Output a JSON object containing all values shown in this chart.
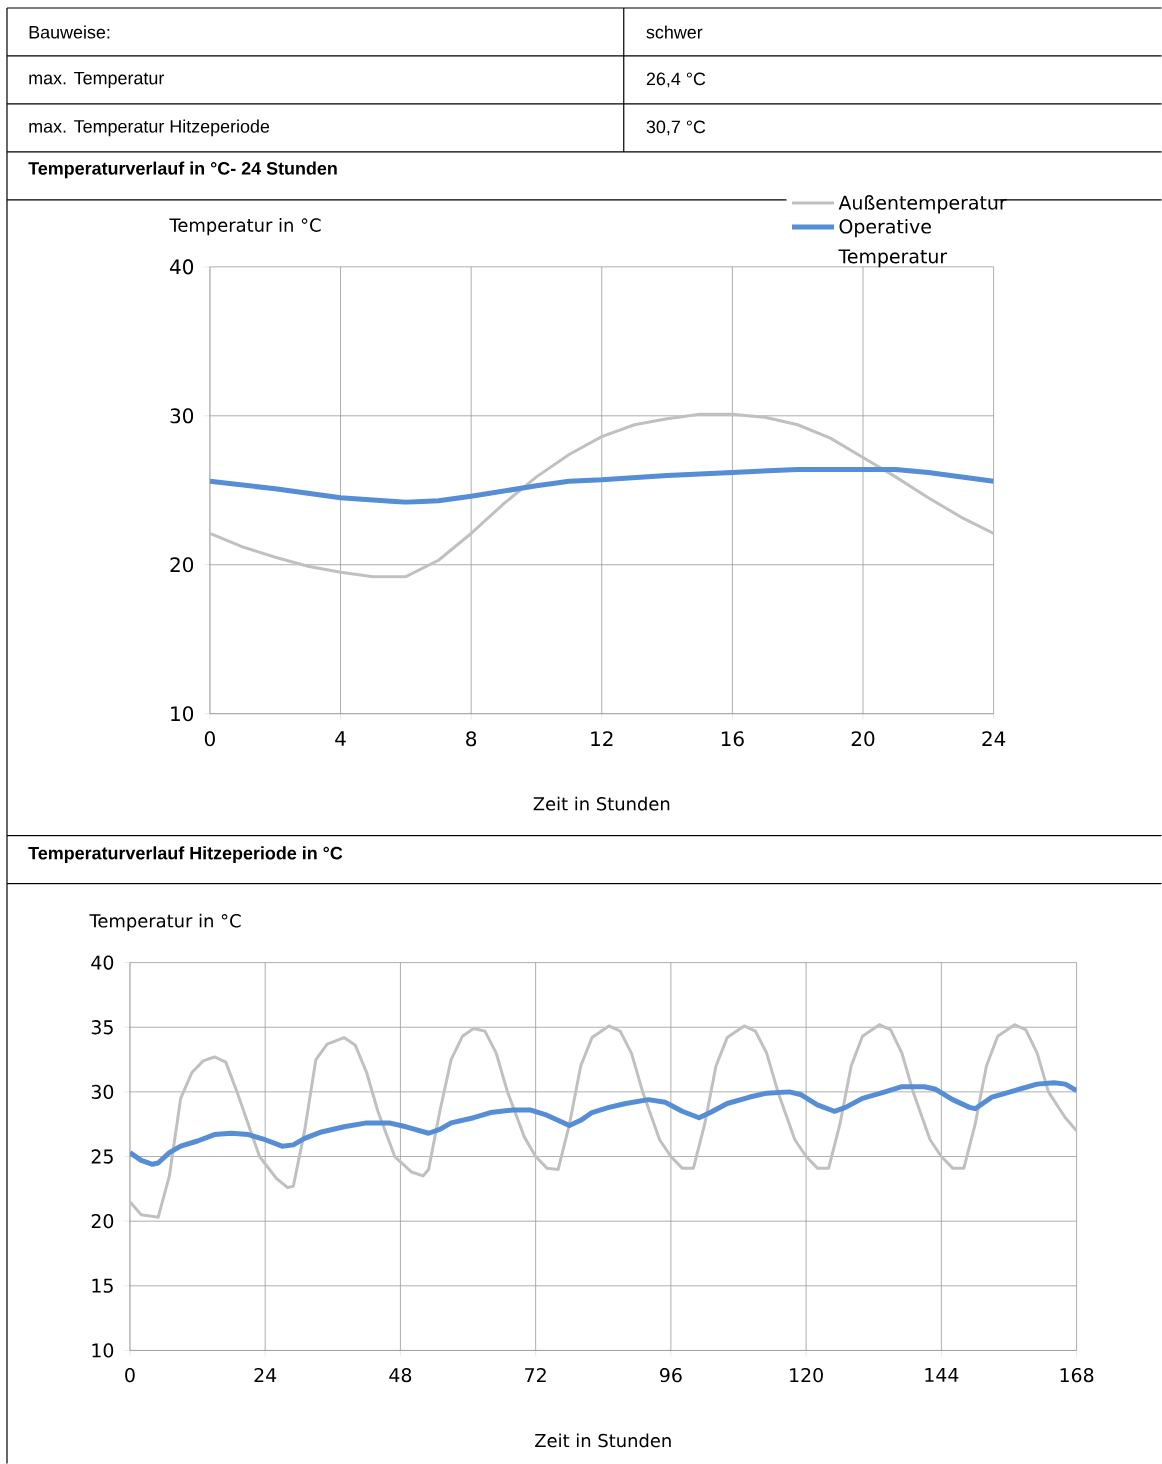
{
  "chart_data": [
    {
      "type": "other",
      "annotations": [
        "Bauweise:",
        "schwer",
        "max. Temperatur",
        "26,4 °C",
        "max. Temperatur Hitzeperiode",
        "30,7 °C"
      ]
    },
    {
      "type": "line",
      "title": "Temperaturverlauf in °C- 24 Stunden",
      "xlabel": "Zeit in Stunden",
      "ylabel": "Temperatur in °C",
      "xlim": [
        0,
        24
      ],
      "xticks": [
        0,
        4,
        8,
        12,
        16,
        20,
        24
      ],
      "ylim": [
        10,
        40
      ],
      "yticks": [
        10,
        20,
        30,
        40
      ],
      "grid": true,
      "legend": "top right",
      "series": [
        {
          "name": "Außentemperatur",
          "color": "#c0c0c0",
          "x": [
            0,
            1,
            2,
            3,
            4,
            5,
            6,
            7,
            8,
            9,
            10,
            11,
            12,
            13,
            14,
            15,
            16,
            17,
            18,
            19,
            20,
            21,
            22,
            23,
            24
          ],
          "values": [
            22.1,
            21.2,
            20.5,
            19.9,
            19.5,
            19.2,
            19.2,
            20.3,
            22.1,
            24.1,
            25.9,
            27.4,
            28.6,
            29.4,
            29.8,
            30.1,
            30.1,
            29.9,
            29.4,
            28.5,
            27.2,
            25.9,
            24.5,
            23.2,
            22.1
          ]
        },
        {
          "name": "Operative Temperatur",
          "color": "#558ed5",
          "x": [
            0,
            2,
            4,
            6,
            7,
            8,
            10,
            11,
            12,
            14,
            16,
            18,
            20,
            21,
            22,
            24
          ],
          "values": [
            25.6,
            25.1,
            24.5,
            24.2,
            24.3,
            24.6,
            25.3,
            25.6,
            25.7,
            26.0,
            26.2,
            26.4,
            26.4,
            26.4,
            26.2,
            25.6
          ]
        }
      ]
    },
    {
      "type": "line",
      "title": "Temperaturverlauf Hitzeperiode in °C",
      "xlabel": "Zeit in Stunden",
      "ylabel": "Temperatur in °C",
      "xlim": [
        0,
        168
      ],
      "xticks": [
        0,
        24,
        48,
        72,
        96,
        120,
        144,
        168
      ],
      "ylim": [
        10,
        40
      ],
      "yticks": [
        10,
        15,
        20,
        25,
        30,
        35,
        40
      ],
      "grid": true,
      "series": [
        {
          "color": "#c0c0c0",
          "x": [
            0,
            2,
            5,
            7,
            9,
            11,
            13,
            15,
            17,
            19,
            21,
            23,
            26,
            28,
            29,
            31,
            33,
            35,
            38,
            40,
            42,
            44,
            47,
            50,
            52,
            53,
            55,
            57,
            59,
            61,
            63,
            65,
            67,
            70,
            72,
            74,
            76,
            78,
            80,
            82,
            85,
            87,
            89,
            91,
            94,
            96,
            98,
            100,
            102,
            104,
            106,
            109,
            111,
            113,
            115,
            118,
            120,
            122,
            124,
            126,
            128,
            130,
            133,
            135,
            137,
            139,
            142,
            144,
            146,
            148,
            150,
            152,
            154,
            157,
            159,
            161,
            163,
            166,
            168
          ],
          "values": [
            21.5,
            20.5,
            20.3,
            23.5,
            29.5,
            31.5,
            32.4,
            32.7,
            32.3,
            30.0,
            27.5,
            25.0,
            23.3,
            22.6,
            22.7,
            27.0,
            32.5,
            33.7,
            34.2,
            33.6,
            31.5,
            28.5,
            25.0,
            23.8,
            23.5,
            24.0,
            28.5,
            32.5,
            34.3,
            34.9,
            34.7,
            33.0,
            30.0,
            26.5,
            25.0,
            24.1,
            24.0,
            27.5,
            32.0,
            34.2,
            35.1,
            34.7,
            33.0,
            30.0,
            26.3,
            25.0,
            24.1,
            24.1,
            27.5,
            32.0,
            34.2,
            35.1,
            34.7,
            33.0,
            30.0,
            26.3,
            25.0,
            24.1,
            24.1,
            27.5,
            32.0,
            34.3,
            35.2,
            34.8,
            33.0,
            30.0,
            26.3,
            25.0,
            24.1,
            24.1,
            27.5,
            32.0,
            34.3,
            35.2,
            34.8,
            33.0,
            30.0,
            28.0,
            27.0
          ]
        },
        {
          "color": "#558ed5",
          "x": [
            0,
            2,
            4,
            5,
            7,
            9,
            12,
            15,
            18,
            21,
            24,
            27,
            29,
            31,
            34,
            38,
            42,
            46,
            49,
            53,
            55,
            57,
            61,
            64,
            68,
            71,
            74,
            78,
            80,
            82,
            85,
            88,
            92,
            95,
            98,
            101,
            103,
            106,
            110,
            113,
            117,
            119,
            122,
            125,
            127,
            130,
            134,
            137,
            141,
            143,
            146,
            149,
            150,
            153,
            157,
            161,
            164,
            166,
            168
          ],
          "values": [
            25.3,
            24.7,
            24.4,
            24.5,
            25.3,
            25.8,
            26.2,
            26.7,
            26.8,
            26.7,
            26.3,
            25.8,
            25.9,
            26.4,
            26.9,
            27.3,
            27.6,
            27.6,
            27.3,
            26.8,
            27.1,
            27.6,
            28.0,
            28.4,
            28.6,
            28.6,
            28.2,
            27.4,
            27.8,
            28.4,
            28.8,
            29.1,
            29.4,
            29.2,
            28.5,
            28.0,
            28.4,
            29.1,
            29.6,
            29.9,
            30.0,
            29.8,
            29.0,
            28.5,
            28.8,
            29.5,
            30.0,
            30.4,
            30.4,
            30.2,
            29.4,
            28.8,
            28.7,
            29.6,
            30.1,
            30.6,
            30.7,
            30.6,
            30.1
          ]
        }
      ]
    }
  ]
}
